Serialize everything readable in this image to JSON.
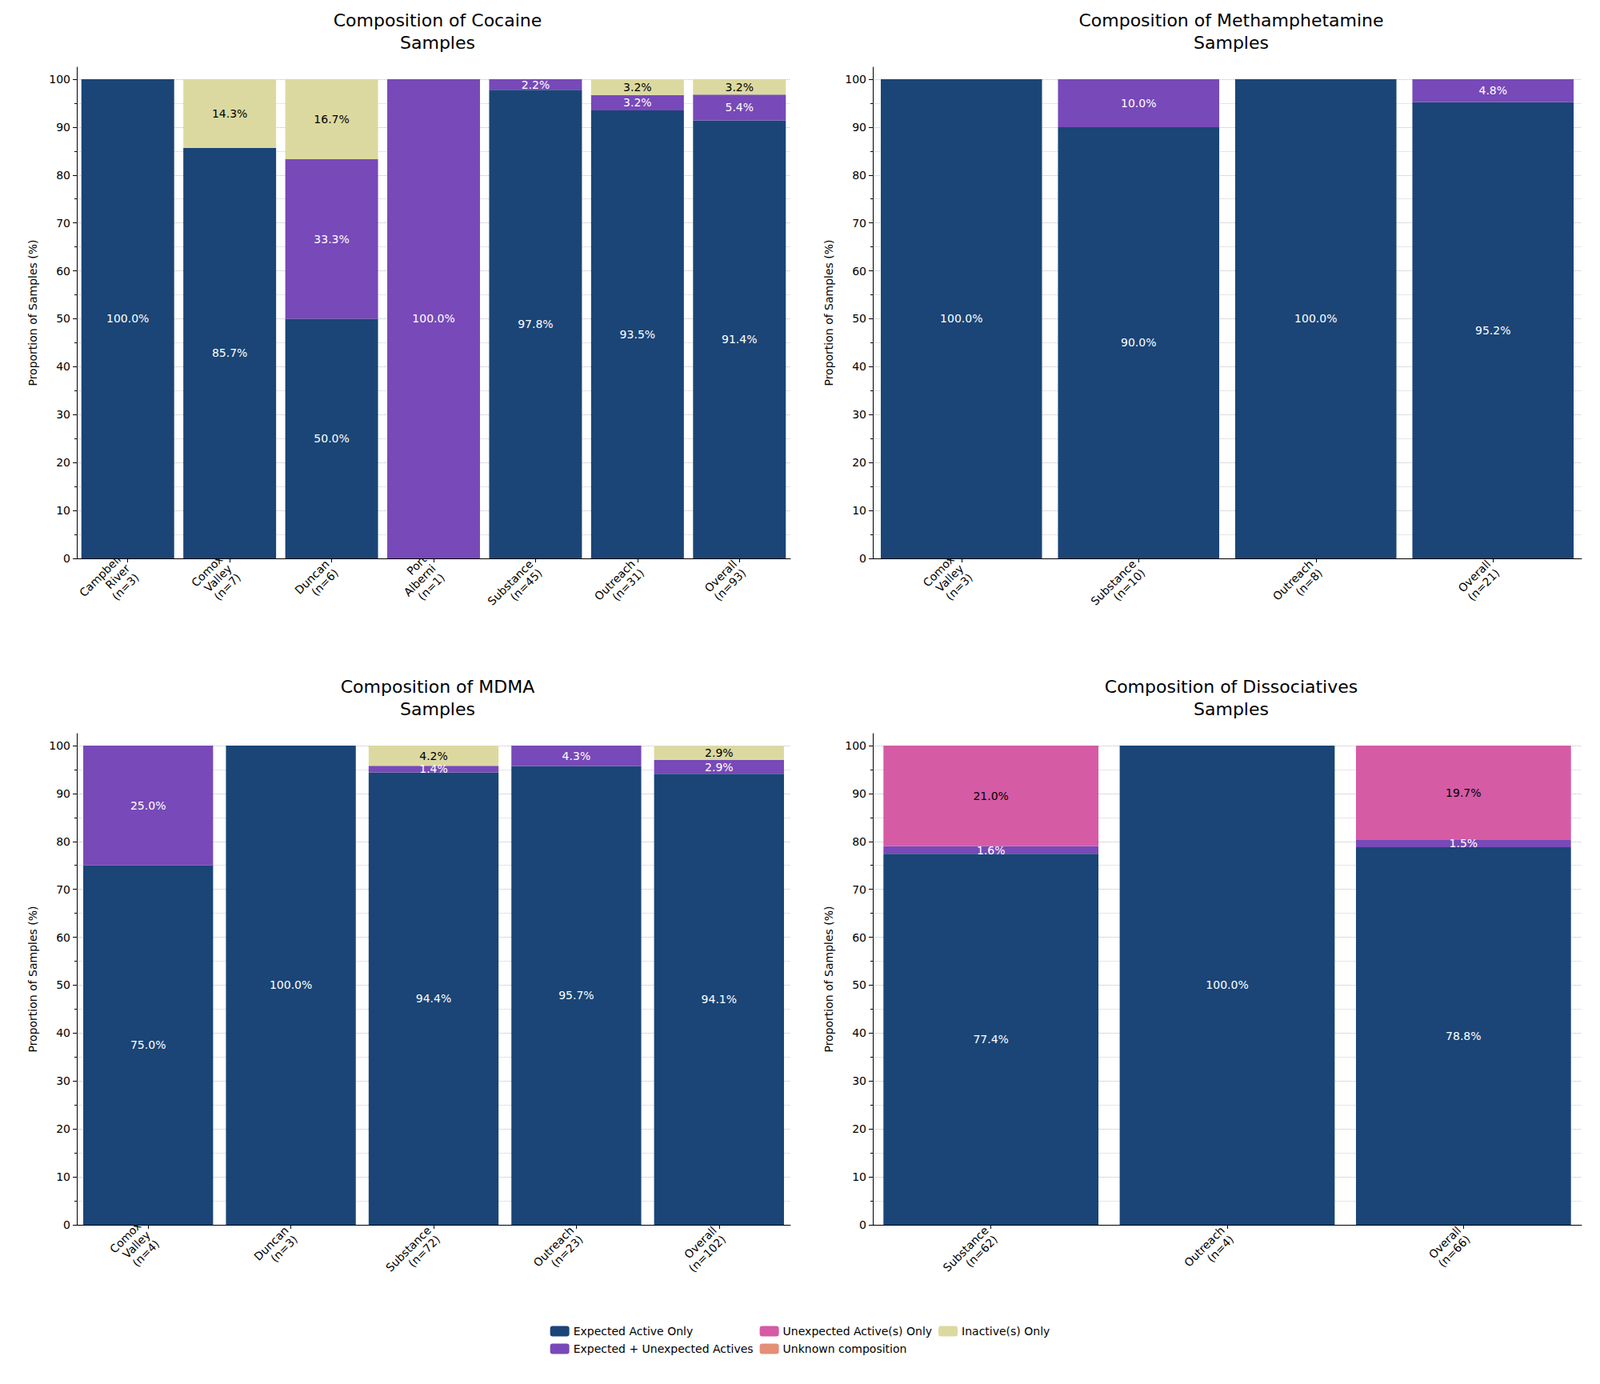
{
  "chart_data": [
    {
      "type": "bar",
      "title": "Composition of Cocaine\nSamples",
      "categories": [
        "Campbell\nRiver\n(n=3)",
        "Comox\nValley\n(n=7)",
        "Duncan\n(n=6)",
        "Port\nAlberni\n(n=1)",
        "Substance\n(n=45)",
        "Outreach\n(n=31)",
        "Overall\n(n=93)"
      ],
      "y_label": "Proportion of Samples (%)",
      "ylim": [
        0,
        102.5
      ],
      "yticks": [
        0,
        10,
        20,
        30,
        40,
        50,
        60,
        70,
        80,
        90,
        100
      ],
      "grid": true,
      "stacked": true,
      "data_labels": true,
      "legend": "bottom",
      "series": [
        {
          "name": "Expected Active Only",
          "color": "#1a4576",
          "values": [
            100,
            85.7,
            50,
            0,
            97.8,
            93.5,
            91.4
          ],
          "value_labels": [
            "100.0%",
            "85.7%",
            "50.0%",
            null,
            "97.8%",
            "93.5%",
            "91.4%"
          ]
        },
        {
          "name": "Expected + Unexpected Actives",
          "color": "#7849b8",
          "values": [
            0,
            0,
            33.3,
            100,
            2.2,
            3.2,
            5.4
          ],
          "value_labels": [
            null,
            null,
            "33.3%",
            "100.0%",
            "2.2%",
            "3.2%",
            "5.4%"
          ]
        },
        {
          "name": "Unexpected Active(s) Only",
          "color": "#d55ba5",
          "values": [
            0,
            0,
            0,
            0,
            0,
            0,
            0
          ],
          "value_labels": [
            null,
            null,
            null,
            null,
            null,
            null,
            null
          ]
        },
        {
          "name": "Unknown composition",
          "color": "#e48f78",
          "values": [
            0,
            0,
            0,
            0,
            0,
            0,
            0
          ],
          "value_labels": [
            null,
            null,
            null,
            null,
            null,
            null,
            null
          ]
        },
        {
          "name": "Inactive(s) Only",
          "color": "#dcd9a0",
          "values": [
            0,
            14.3,
            16.7,
            0,
            0,
            3.2,
            3.2
          ],
          "value_labels": [
            null,
            "14.3%",
            "16.7%",
            null,
            null,
            "3.2%",
            "3.2%"
          ]
        }
      ]
    },
    {
      "type": "bar",
      "title": "Composition of Methamphetamine\nSamples",
      "categories": [
        "Comox\nValley\n(n=3)",
        "Substance\n(n=10)",
        "Outreach\n(n=8)",
        "Overall\n(n=21)"
      ],
      "y_label": "Proportion of Samples (%)",
      "ylim": [
        0,
        102.5
      ],
      "yticks": [
        0,
        10,
        20,
        30,
        40,
        50,
        60,
        70,
        80,
        90,
        100
      ],
      "grid": true,
      "stacked": true,
      "data_labels": true,
      "legend": "bottom",
      "series": [
        {
          "name": "Expected Active Only",
          "color": "#1a4576",
          "values": [
            100,
            90,
            100,
            95.2
          ],
          "value_labels": [
            "100.0%",
            "90.0%",
            "100.0%",
            "95.2%"
          ]
        },
        {
          "name": "Expected + Unexpected Actives",
          "color": "#7849b8",
          "values": [
            0,
            10,
            0,
            4.8
          ],
          "value_labels": [
            null,
            "10.0%",
            null,
            "4.8%"
          ]
        },
        {
          "name": "Unexpected Active(s) Only",
          "color": "#d55ba5",
          "values": [
            0,
            0,
            0,
            0
          ],
          "value_labels": [
            null,
            null,
            null,
            null
          ]
        },
        {
          "name": "Unknown composition",
          "color": "#e48f78",
          "values": [
            0,
            0,
            0,
            0
          ],
          "value_labels": [
            null,
            null,
            null,
            null
          ]
        },
        {
          "name": "Inactive(s) Only",
          "color": "#dcd9a0",
          "values": [
            0,
            0,
            0,
            0
          ],
          "value_labels": [
            null,
            null,
            null,
            null
          ]
        }
      ]
    },
    {
      "type": "bar",
      "title": "Composition of MDMA\nSamples",
      "categories": [
        "Comox\nValley\n(n=4)",
        "Duncan\n(n=3)",
        "Substance\n(n=72)",
        "Outreach\n(n=23)",
        "Overall\n(n=102)"
      ],
      "y_label": "Proportion of Samples (%)",
      "ylim": [
        0,
        102.5
      ],
      "yticks": [
        0,
        10,
        20,
        30,
        40,
        50,
        60,
        70,
        80,
        90,
        100
      ],
      "grid": true,
      "stacked": true,
      "data_labels": true,
      "legend": "bottom",
      "series": [
        {
          "name": "Expected Active Only",
          "color": "#1a4576",
          "values": [
            75,
            100,
            94.4,
            95.7,
            94.1
          ],
          "value_labels": [
            "75.0%",
            "100.0%",
            "94.4%",
            "95.7%",
            "94.1%"
          ]
        },
        {
          "name": "Expected + Unexpected Actives",
          "color": "#7849b8",
          "values": [
            25,
            0,
            1.4,
            4.3,
            2.9
          ],
          "value_labels": [
            "25.0%",
            null,
            "1.4%",
            "4.3%",
            "2.9%"
          ]
        },
        {
          "name": "Unexpected Active(s) Only",
          "color": "#d55ba5",
          "values": [
            0,
            0,
            0,
            0,
            0
          ],
          "value_labels": [
            null,
            null,
            null,
            null,
            null
          ]
        },
        {
          "name": "Unknown composition",
          "color": "#e48f78",
          "values": [
            0,
            0,
            0,
            0,
            0
          ],
          "value_labels": [
            null,
            null,
            null,
            null,
            null
          ]
        },
        {
          "name": "Inactive(s) Only",
          "color": "#dcd9a0",
          "values": [
            0,
            0,
            4.2,
            0,
            2.9
          ],
          "value_labels": [
            null,
            null,
            "4.2%",
            null,
            "2.9%"
          ]
        }
      ]
    },
    {
      "type": "bar",
      "title": "Composition of Dissociatives\nSamples",
      "categories": [
        "Substance\n(n=62)",
        "Outreach\n(n=4)",
        "Overall\n(n=66)"
      ],
      "y_label": "Proportion of Samples (%)",
      "ylim": [
        0,
        102.5
      ],
      "yticks": [
        0,
        10,
        20,
        30,
        40,
        50,
        60,
        70,
        80,
        90,
        100
      ],
      "grid": true,
      "stacked": true,
      "data_labels": true,
      "legend": "bottom",
      "series": [
        {
          "name": "Expected Active Only",
          "color": "#1a4576",
          "values": [
            77.4,
            100,
            78.8
          ],
          "value_labels": [
            "77.4%",
            "100.0%",
            "78.8%"
          ]
        },
        {
          "name": "Expected + Unexpected Actives",
          "color": "#7849b8",
          "values": [
            1.6,
            0,
            1.5
          ],
          "value_labels": [
            "1.6%",
            null,
            "1.5%"
          ]
        },
        {
          "name": "Unexpected Active(s) Only",
          "color": "#d55ba5",
          "values": [
            21.0,
            0,
            19.7
          ],
          "value_labels": [
            "21.0%",
            null,
            "19.7%"
          ]
        },
        {
          "name": "Unknown composition",
          "color": "#e48f78",
          "values": [
            0,
            0,
            0
          ],
          "value_labels": [
            null,
            null,
            null
          ]
        },
        {
          "name": "Inactive(s) Only",
          "color": "#dcd9a0",
          "values": [
            0,
            0,
            0
          ],
          "value_labels": [
            null,
            null,
            null
          ]
        }
      ]
    }
  ]
}
